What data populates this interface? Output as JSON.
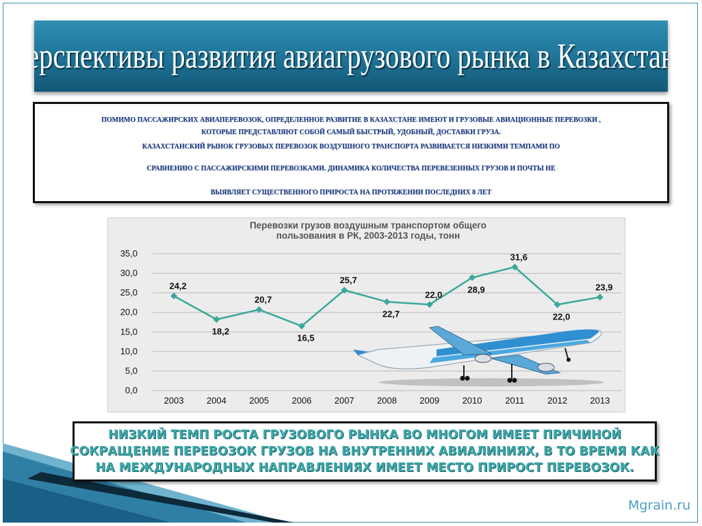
{
  "title": "Перспективы развития авиагрузового рынка в Казахстане.",
  "intro": {
    "lines": [
      "ПОМИМО ПАССАЖИРСКИХ АВИАПЕРЕВОЗОК, ОПРЕДЕЛЕННОЕ РАЗВИТИЕ В КАЗАХСТАНЕ ИМЕЮТ И ГРУЗОВЫЕ АВИАЦИОННЫЕ ПЕРЕВОЗКИ ,",
      "КОТОРЫЕ ПРЕДСТАВЛЯЮТ СОБОЙ САМЫЙ БЫСТРЫЙ, УДОБНЫЙ, ДОСТАВКИ ГРУЗА.",
      "КАЗАХСТАНСКИЙ РЫНОК ГРУЗОВЫХ ПЕРЕВОЗОК ВОЗДУШНОГО ТРАНСПОРТА РАЗВИВАЕТСЯ НИЗКИМИ ТЕМПАМИ ПО",
      "СРАВНЕНИЮ С ПАССАЖИРСКИМИ ПЕРЕВОЗКАМИ. ДИНАМИКА КОЛИЧЕСТВА ПЕРЕВЕЗЕННЫХ ГРУЗОВ И ПОЧТЫ НЕ",
      "ВЫЯВЛЯЕТ СУЩЕСТВЕННОГО ПРИРОСТА НА ПРОТЯЖЕНИИ ПОСЛЕДНИХ 8 ЛЕТ"
    ]
  },
  "chart_data": {
    "type": "line",
    "title": [
      "Перевозки грузов воздушным транспортом общего",
      "пользования в РК, 2003-2013 годы, тонн"
    ],
    "x": [
      "2003",
      "2004",
      "2005",
      "2006",
      "2007",
      "2008",
      "2009",
      "2010",
      "2011",
      "2012",
      "2013"
    ],
    "values": [
      24.2,
      18.2,
      20.7,
      16.5,
      25.7,
      22.7,
      22.0,
      28.9,
      31.6,
      22.0,
      23.9
    ],
    "data_labels": [
      "24,2",
      "18,2",
      "20,7",
      "16,5",
      "25,7",
      "22,7",
      "22,0",
      "28,9",
      "31,6",
      "22,0",
      "23,9"
    ],
    "y_ticks": [
      "0,0",
      "5,0",
      "10,0",
      "15,0",
      "20,0",
      "25,0",
      "30,0",
      "35,0"
    ],
    "ylim": [
      0,
      35
    ],
    "grid": true,
    "line_color": "#3aa89a",
    "illustration": "passenger-airplane"
  },
  "conclusion": {
    "lines": [
      "НИЗКИЙ ТЕМП РОСТА ГРУЗОВОГО РЫНКА ВО МНОГОМ ИМЕЕТ ПРИЧИНОЙ",
      "СОКРАЩЕНИЕ ПЕРЕВОЗОК ГРУЗОВ НА ВНУТРЕННИХ АВИАЛИНИЯХ, В ТО ВРЕМЯ КАК",
      "НА МЕЖДУНАРОДНЫХ НАПРАВЛЕНИЯХ ИМЕЕТ МЕСТО ПРИРОСТ ПЕРЕВОЗОК."
    ]
  },
  "watermark": "Mgrain.ru",
  "colors": {
    "banner": "#1d7296",
    "intro_text": "#1e3a8a",
    "conclusion_text": "#3fa8a8",
    "accent": "#4a9ec0"
  }
}
